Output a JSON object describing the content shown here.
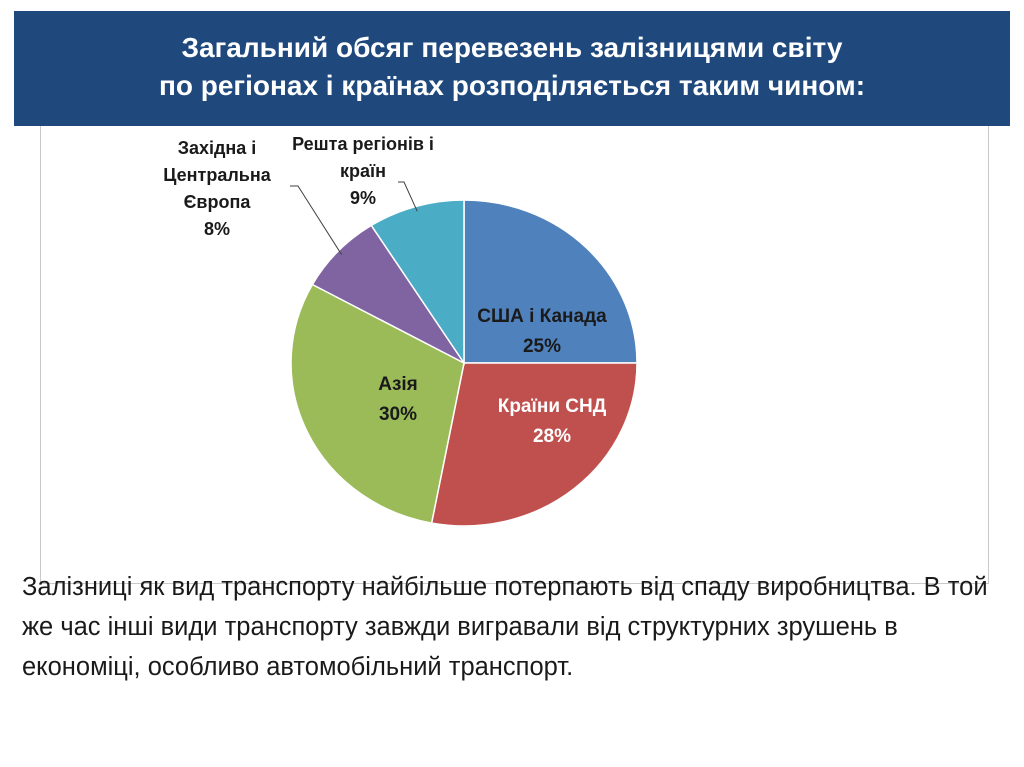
{
  "title": {
    "line1": "Загальний обсяг перевезень залізницями світу",
    "line2": "по регіонах і країнах  розподіляється таким чином:"
  },
  "chart_data": {
    "type": "pie",
    "slices": [
      {
        "name": "США і Канада",
        "value": 25,
        "label": "25%",
        "color": "#4f81bd"
      },
      {
        "name": "Країни СНД",
        "value": 28,
        "label": "28%",
        "color": "#c0504d"
      },
      {
        "name": "Азія",
        "value": 30,
        "label": "30%",
        "color": "#9bbb59"
      },
      {
        "name": "Західна і Центральна Європа",
        "value": 8,
        "label": "8%",
        "color": "#8064a2"
      },
      {
        "name": "Решта регіонів і країн",
        "value": 9,
        "label": "9%",
        "color": "#4bacc6"
      }
    ],
    "label_lines": {
      "usa": [
        "США і Канада",
        "25%"
      ],
      "cis": [
        "Країни СНД",
        "28%"
      ],
      "asia": [
        "Азія",
        "30%"
      ],
      "europe": [
        "Західна і",
        "Центральна",
        "Європа",
        "8%"
      ],
      "rest": [
        "Решта регіонів і",
        "країн",
        "9%"
      ]
    }
  },
  "body": {
    "text": "Залізниці як вид транспорту найбільше потерпають від спаду виробництва. В той же час інші види транспорту завжди вигравали від структурних зрушень в економіці, особливо автомобільний транспорт."
  }
}
